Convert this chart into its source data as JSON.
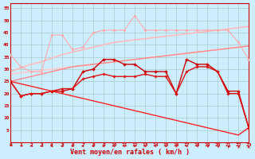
{
  "x": [
    0,
    1,
    2,
    3,
    4,
    5,
    6,
    7,
    8,
    9,
    10,
    11,
    12,
    13,
    14,
    15,
    16,
    17,
    18,
    19,
    20,
    21,
    22,
    23
  ],
  "series": [
    {
      "name": "light_pink_markers",
      "color": "#ffaaaa",
      "linewidth": 0.8,
      "marker": "D",
      "markersize": 1.8,
      "y": [
        36,
        31,
        29,
        29,
        44,
        44,
        38,
        39,
        45,
        46,
        46,
        46,
        52,
        46,
        46,
        46,
        46,
        46,
        46,
        46,
        46,
        46,
        41,
        34
      ]
    },
    {
      "name": "pink_trend_upper",
      "color": "#ffbbbb",
      "linewidth": 1.2,
      "marker": null,
      "markersize": 0,
      "y": [
        29.0,
        30.5,
        32.0,
        33.0,
        34.5,
        36.0,
        37.0,
        38.0,
        39.0,
        40.0,
        41.0,
        41.5,
        42.0,
        42.5,
        43.0,
        43.5,
        44.0,
        44.5,
        45.0,
        45.5,
        46.0,
        46.5,
        47.0,
        47.5
      ]
    },
    {
      "name": "pink_trend_lower",
      "color": "#ffcccc",
      "linewidth": 1.2,
      "marker": null,
      "markersize": 0,
      "y": [
        28.0,
        28.5,
        29.0,
        29.5,
        30.0,
        30.5,
        31.0,
        31.5,
        32.0,
        32.5,
        33.0,
        33.5,
        34.0,
        34.5,
        35.0,
        35.5,
        36.0,
        36.5,
        37.0,
        37.5,
        38.0,
        38.5,
        39.0,
        39.5
      ]
    },
    {
      "name": "salmon_line",
      "color": "#ff8888",
      "linewidth": 1.0,
      "marker": null,
      "markersize": 0,
      "y": [
        25.0,
        26.0,
        27.0,
        28.0,
        29.0,
        30.0,
        31.0,
        31.5,
        32.0,
        32.5,
        33.0,
        33.5,
        34.0,
        34.5,
        35.0,
        35.5,
        36.0,
        36.5,
        37.0,
        37.5,
        38.0,
        38.5,
        39.0,
        39.5
      ]
    },
    {
      "name": "dark_red_main",
      "color": "#cc0000",
      "linewidth": 1.0,
      "marker": "D",
      "markersize": 2.0,
      "y": [
        25,
        19,
        20,
        20,
        21,
        21,
        22,
        29,
        30,
        34,
        34,
        32,
        32,
        29,
        29,
        29,
        20,
        34,
        32,
        32,
        29,
        21,
        21,
        6
      ]
    },
    {
      "name": "red_secondary",
      "color": "#dd1111",
      "linewidth": 1.0,
      "marker": "D",
      "markersize": 1.8,
      "y": [
        25,
        19,
        20,
        20,
        21,
        22,
        22,
        26,
        27,
        28,
        27,
        27,
        27,
        28,
        27,
        27,
        20,
        29,
        31,
        31,
        29,
        20,
        20,
        6
      ]
    },
    {
      "name": "diagonal_down",
      "color": "#ff2222",
      "linewidth": 1.0,
      "marker": null,
      "markersize": 0,
      "y": [
        25,
        24,
        23,
        22,
        21,
        20,
        19,
        18,
        17,
        16,
        15,
        14,
        13,
        12,
        11,
        10,
        9,
        8,
        7,
        6,
        5,
        4,
        3,
        6
      ]
    }
  ],
  "xlim": [
    0,
    23
  ],
  "ylim": [
    0,
    57
  ],
  "yticks": [
    5,
    10,
    15,
    20,
    25,
    30,
    35,
    40,
    45,
    50,
    55
  ],
  "xticks": [
    0,
    1,
    2,
    3,
    4,
    5,
    6,
    7,
    8,
    9,
    10,
    11,
    12,
    13,
    14,
    15,
    16,
    17,
    18,
    19,
    20,
    21,
    22,
    23
  ],
  "xlabel": "Vent moyen/en rafales ( km/h )",
  "background_color": "#cceeff",
  "grid_color": "#aacccc",
  "axis_color": "#cc0000",
  "label_color": "#cc0000",
  "arrow_angles_deg": [
    200,
    210,
    220,
    230,
    240,
    245,
    250,
    255,
    260,
    265,
    270,
    275,
    280,
    285,
    290,
    295,
    300,
    310,
    320,
    330,
    340,
    350,
    355,
    360
  ]
}
